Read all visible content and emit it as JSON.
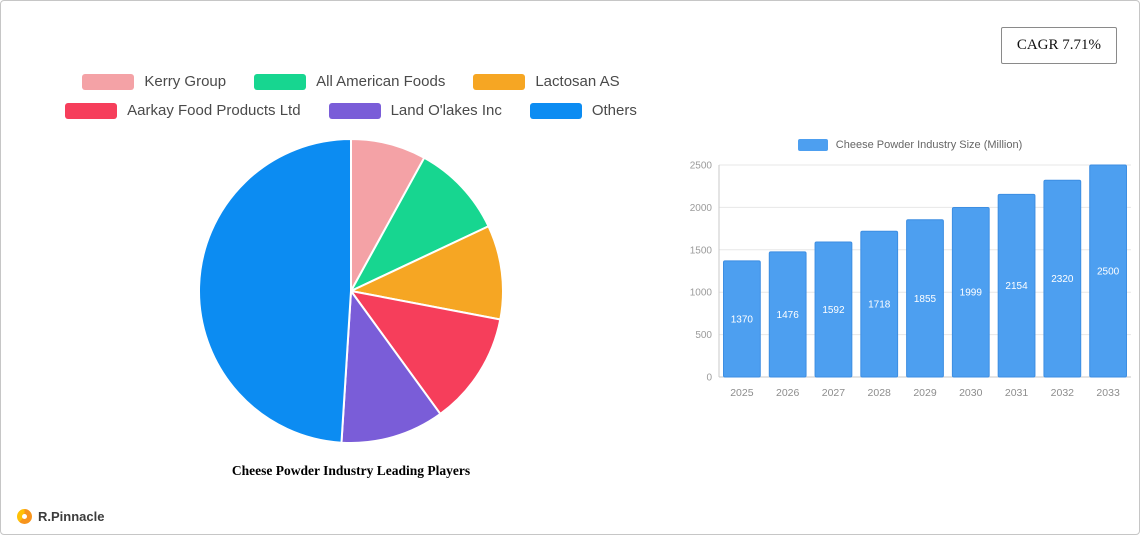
{
  "page": {
    "cagr_label": "CAGR 7.71%",
    "brand": "R.Pinnacle"
  },
  "chart_data": [
    {
      "type": "pie",
      "title": "Cheese Powder Industry Leading Players",
      "legend_position": "top",
      "labels": [
        "Kerry Group",
        "All American Foods",
        "Lactosan AS",
        "Aarkay Food Products Ltd",
        "Land O'lakes Inc",
        "Others"
      ],
      "values": [
        8,
        10,
        10,
        12,
        11,
        49
      ],
      "colors": [
        "#f4a2a6",
        "#17d690",
        "#f6a623",
        "#f63e5b",
        "#7a5dd8",
        "#0c8cf2"
      ]
    },
    {
      "type": "bar",
      "legend": "Cheese Powder Industry Size (Million)",
      "categories": [
        "2025",
        "2026",
        "2027",
        "2028",
        "2029",
        "2030",
        "2031",
        "2032",
        "2033"
      ],
      "values": [
        1370,
        1476,
        1592,
        1718,
        1855,
        1999,
        2154,
        2320,
        2500
      ],
      "ylim": [
        0,
        2500
      ],
      "yticks": [
        0,
        500,
        1000,
        1500,
        2000,
        2500
      ],
      "bar_color": "#4d9ff0",
      "bar_border_color": "#3d8ee2",
      "value_label_color": "#ffffff",
      "grid": true,
      "legend_position": "top"
    }
  ]
}
